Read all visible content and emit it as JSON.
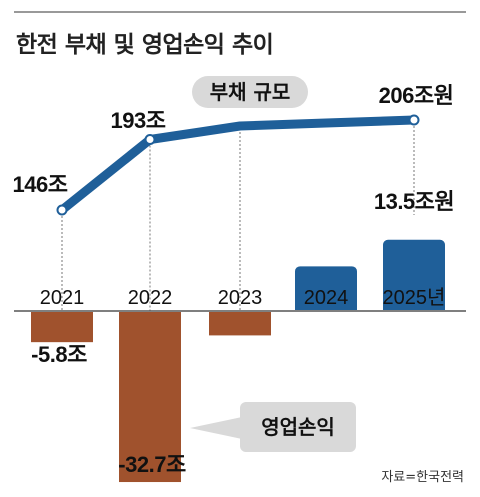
{
  "title": "한전 부채 및 영업손익 추이",
  "source": "자료=한국전력",
  "chart_data": [
    {
      "type": "line",
      "name": "부채 규모",
      "x": [
        "2021",
        "2022",
        "2023",
        "2024",
        "2025"
      ],
      "values": [
        146,
        193,
        202,
        204,
        206
      ],
      "labels": [
        "146조",
        "193조",
        null,
        null,
        "206조원"
      ],
      "unit": "조원",
      "color": "#1f5f99"
    },
    {
      "type": "bar",
      "categories": [
        "2021",
        "2022",
        "2023",
        "2024",
        "2025년"
      ],
      "series": [
        {
          "name": "영업손익",
          "values": [
            -5.8,
            -32.7,
            -4.5,
            8.4,
            13.5
          ],
          "labels": [
            "-5.8조",
            "-32.7조",
            null,
            null,
            "13.5조원"
          ],
          "positive_color": "#1f5f99",
          "negative_color": "#a0522d"
        }
      ],
      "unit": "조원"
    }
  ],
  "labels": {
    "debt_pill": "부채 규모",
    "profit_pill": "영업손익"
  }
}
